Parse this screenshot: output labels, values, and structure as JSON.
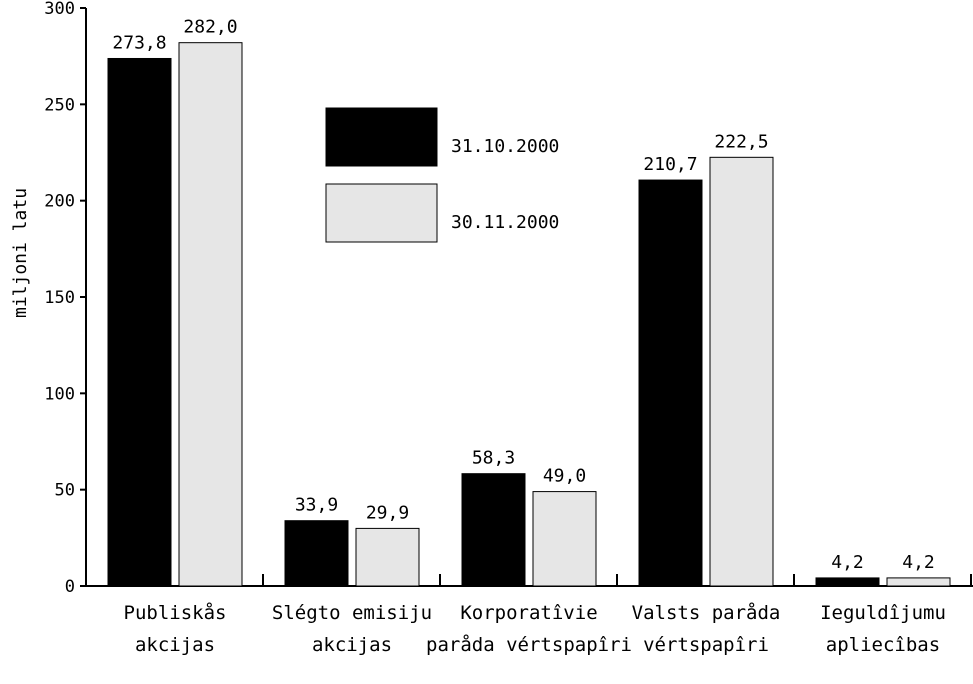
{
  "chart_data": {
    "type": "bar",
    "ylabel": "miljoni latu",
    "ylim": [
      0,
      300
    ],
    "yticks": [
      0,
      50,
      100,
      150,
      200,
      250,
      300
    ],
    "ytick_labels": [
      "0",
      "50",
      "100",
      "150",
      "200",
      "250",
      "300"
    ],
    "categories": [
      [
        "Publiskås",
        "akcijas"
      ],
      [
        "Slégto emisiju",
        "akcijas"
      ],
      [
        "Korporatîvie",
        "paråda vértspapîri"
      ],
      [
        "Valsts paråda",
        "vértspapîri"
      ],
      [
        "Ieguldîjumu",
        "apliecîbas"
      ]
    ],
    "series": [
      {
        "name": "31.10.2000",
        "color": "#000000",
        "values": [
          273.8,
          33.9,
          58.3,
          210.7,
          4.2
        ],
        "labels": [
          "273,8",
          "33,9",
          "58,3",
          "210,7",
          "4,2"
        ]
      },
      {
        "name": "30.11.2000",
        "color": "#e6e6e6",
        "values": [
          282.0,
          29.9,
          49.0,
          222.5,
          4.2
        ],
        "labels": [
          "282,0",
          "29,9",
          "49,0",
          "222,5",
          "4,2"
        ]
      }
    ],
    "legend": {
      "placement": "top-center"
    },
    "grid": false
  }
}
